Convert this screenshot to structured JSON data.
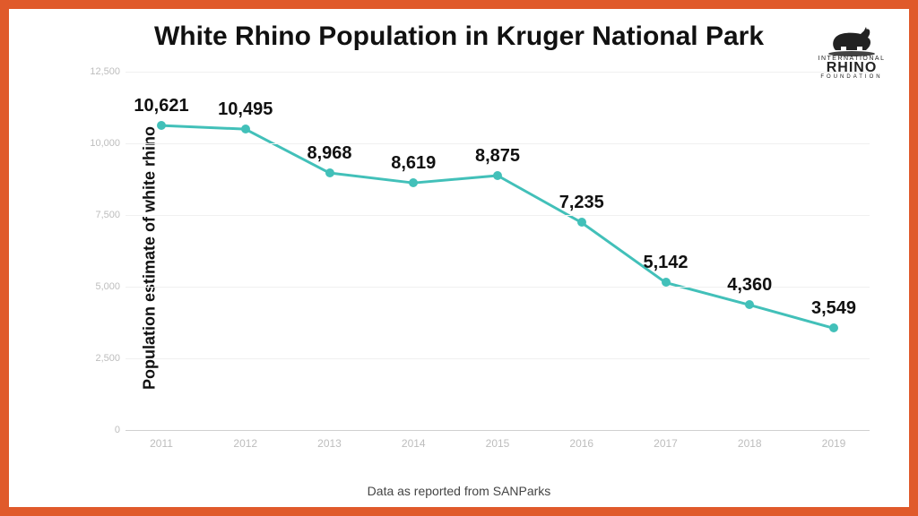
{
  "chart": {
    "type": "line",
    "title": "White Rhino Population in Kruger National Park",
    "title_fontsize": 30,
    "title_weight": 900,
    "ylabel": "Population estimate of white rhino",
    "ylabel_fontsize": 18,
    "caption": "Data as reported from SANParks",
    "caption_fontsize": 14,
    "categories": [
      "2011",
      "2012",
      "2013",
      "2014",
      "2015",
      "2016",
      "2017",
      "2018",
      "2019"
    ],
    "values": [
      10621,
      10495,
      8968,
      8619,
      8875,
      7235,
      5142,
      4360,
      3549
    ],
    "value_labels": [
      "10,621",
      "10,495",
      "8,968",
      "8,619",
      "8,875",
      "7,235",
      "5,142",
      "4,360",
      "3,549"
    ],
    "data_label_fontsize": 20,
    "ylim": [
      0,
      12500
    ],
    "ytick_step": 2500,
    "ytick_labels": [
      "0",
      "2,500",
      "5,000",
      "7,500",
      "10,000",
      "12,500"
    ],
    "ytick_fontsize": 11,
    "xtick_fontsize": 12,
    "line_color": "#42c0b9",
    "line_width": 3,
    "marker_color": "#42c0b9",
    "marker_size": 10,
    "background_color": "#ffffff",
    "grid_color": "#f0f0f0",
    "baseline_color": "#d0d0d0",
    "tick_text_color": "#bdbdbd",
    "frame_border_color": "#e05a2b",
    "frame_border_width": 10
  },
  "logo": {
    "name": "International Rhino Foundation",
    "text_top": "INTERNATIONAL",
    "text_main": "RHINO",
    "text_sub": "FOUNDATION",
    "icon_color": "#222222"
  }
}
